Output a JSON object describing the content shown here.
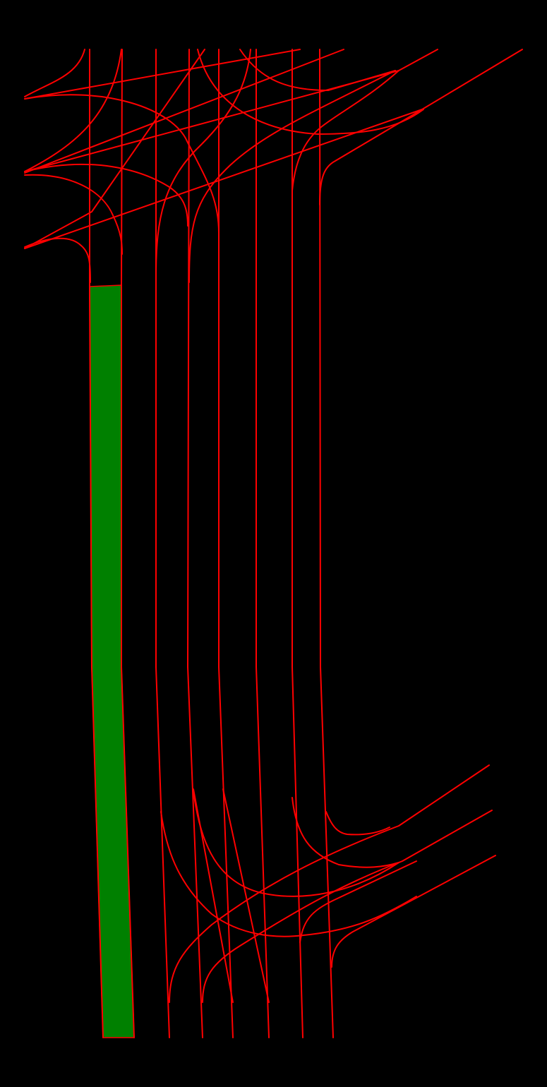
{
  "map": {
    "background_color": "#000000",
    "lane_line_color": "#ff0000",
    "highlighted_lane_color": "#008000",
    "highlighted_lane_outline_color": "#ff0000",
    "lane_line_count": 40,
    "highlighted_lane_count": 1
  }
}
